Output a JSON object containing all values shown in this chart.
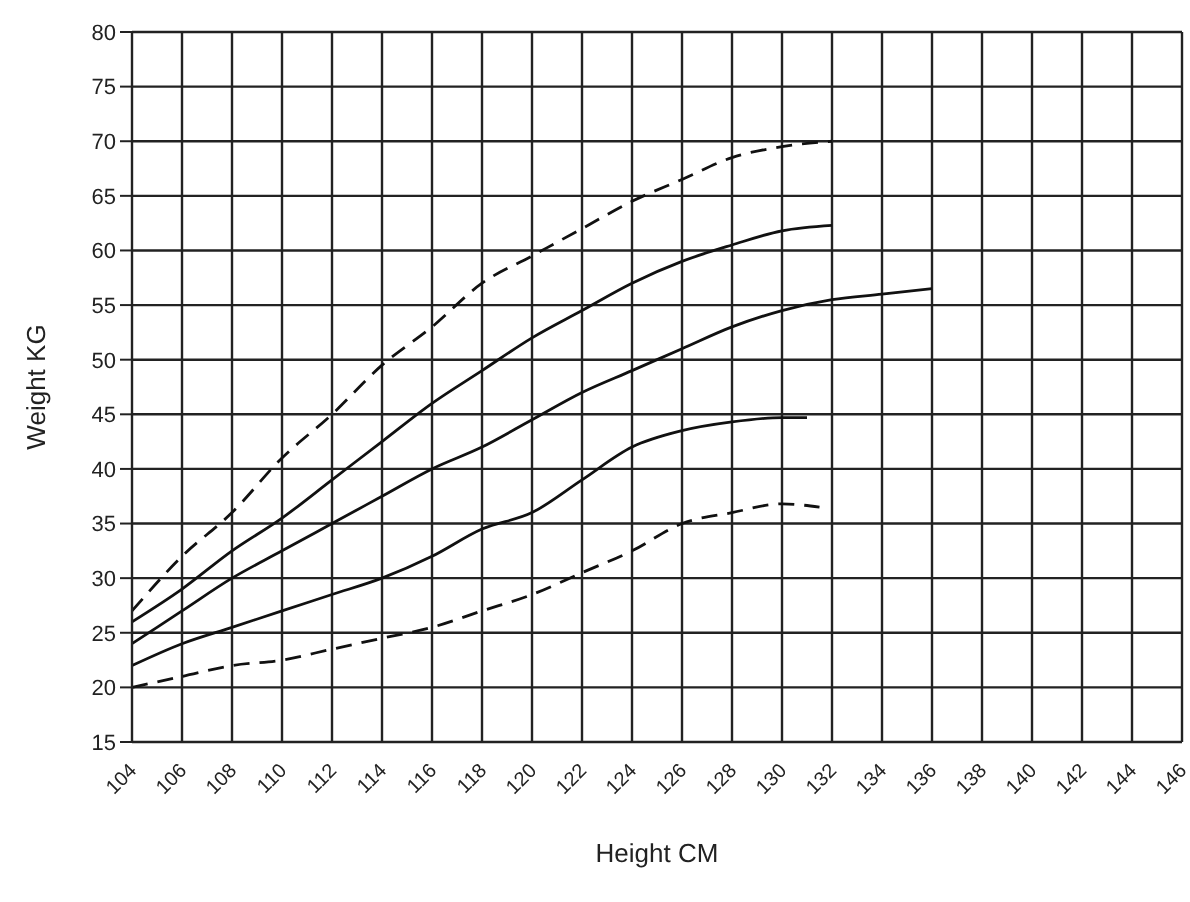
{
  "chart_data": {
    "type": "line",
    "xlabel": "Height CM",
    "ylabel": "Weight KG",
    "xlim": [
      104,
      146
    ],
    "xticks": [
      104,
      106,
      108,
      110,
      112,
      114,
      116,
      118,
      120,
      122,
      124,
      126,
      128,
      130,
      132,
      134,
      136,
      138,
      140,
      142,
      144,
      146
    ],
    "ylim": [
      15,
      80
    ],
    "yticks": [
      15,
      20,
      25,
      30,
      35,
      40,
      45,
      50,
      55,
      60,
      65,
      70,
      75,
      80
    ],
    "grid": true,
    "marker": "none",
    "series": [
      {
        "color": "#111111",
        "line_style": "dashed",
        "x": [
          104,
          106,
          108,
          110,
          112,
          114,
          116,
          118,
          120,
          122,
          124,
          126,
          128,
          130,
          132
        ],
        "values": [
          27,
          32,
          36,
          41,
          45,
          49.5,
          53,
          57,
          59.5,
          62,
          64.5,
          66.5,
          68.5,
          69.5,
          70
        ]
      },
      {
        "color": "#111111",
        "line_style": "solid",
        "x": [
          104,
          106,
          108,
          110,
          112,
          114,
          116,
          118,
          120,
          122,
          124,
          126,
          128,
          130,
          132
        ],
        "values": [
          26,
          29,
          32.5,
          35.5,
          39,
          42.5,
          46,
          49,
          52,
          54.5,
          57,
          59,
          60.5,
          61.8,
          62.3
        ]
      },
      {
        "color": "#111111",
        "line_style": "solid",
        "x": [
          104,
          106,
          108,
          110,
          112,
          114,
          116,
          118,
          120,
          122,
          124,
          126,
          128,
          130,
          132,
          134,
          136
        ],
        "values": [
          24,
          27,
          30,
          32.5,
          35,
          37.5,
          40,
          42,
          44.5,
          47,
          49,
          51,
          53,
          54.5,
          55.5,
          56,
          56.5
        ]
      },
      {
        "color": "#111111",
        "line_style": "solid",
        "x": [
          104,
          106,
          108,
          110,
          112,
          114,
          116,
          118,
          120,
          122,
          124,
          126,
          128,
          130,
          131
        ],
        "values": [
          22,
          24,
          25.5,
          27,
          28.5,
          30,
          32,
          34.5,
          36,
          39,
          42,
          43.5,
          44.3,
          44.7,
          44.7
        ]
      },
      {
        "color": "#111111",
        "line_style": "dashed",
        "x": [
          104,
          106,
          108,
          110,
          112,
          114,
          116,
          118,
          120,
          122,
          124,
          126,
          128,
          130,
          131.5
        ],
        "values": [
          20,
          21,
          22,
          22.5,
          23.5,
          24.5,
          25.5,
          27,
          28.5,
          30.5,
          32.5,
          35,
          36,
          36.8,
          36.5
        ]
      }
    ]
  }
}
